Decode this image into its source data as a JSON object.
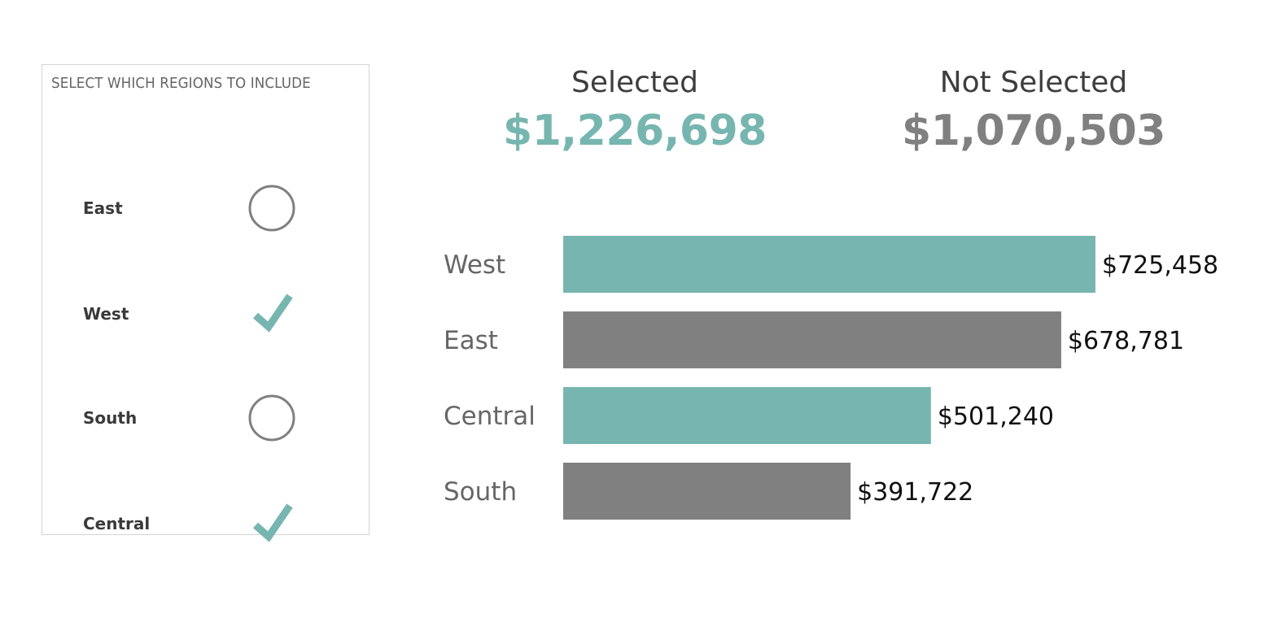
{
  "colors": {
    "selected": "#77b6b0",
    "not_selected": "#808080",
    "circle_stroke": "#808080"
  },
  "filter": {
    "title": "SELECT WHICH REGIONS TO INCLUDE",
    "items": [
      {
        "label": "East",
        "state": "unselected",
        "icon": "circle-icon"
      },
      {
        "label": "West",
        "state": "selected",
        "icon": "check-icon"
      },
      {
        "label": "South",
        "state": "unselected",
        "icon": "circle-icon"
      },
      {
        "label": "Central",
        "state": "selected",
        "icon": "check-icon"
      }
    ]
  },
  "kpis": {
    "selected": {
      "label": "Selected",
      "value": "$1,226,698"
    },
    "not_selected": {
      "label": "Not Selected",
      "value": "$1,070,503"
    }
  },
  "chart_data": {
    "type": "bar",
    "orientation": "horizontal",
    "categories": [
      "West",
      "East",
      "Central",
      "South"
    ],
    "values": [
      725458,
      678781,
      501240,
      391722
    ],
    "value_labels": [
      "$725,458",
      "$678,781",
      "$501,240",
      "$391,722"
    ],
    "selected": [
      true,
      false,
      true,
      false
    ],
    "xlim": [
      0,
      725458
    ]
  }
}
